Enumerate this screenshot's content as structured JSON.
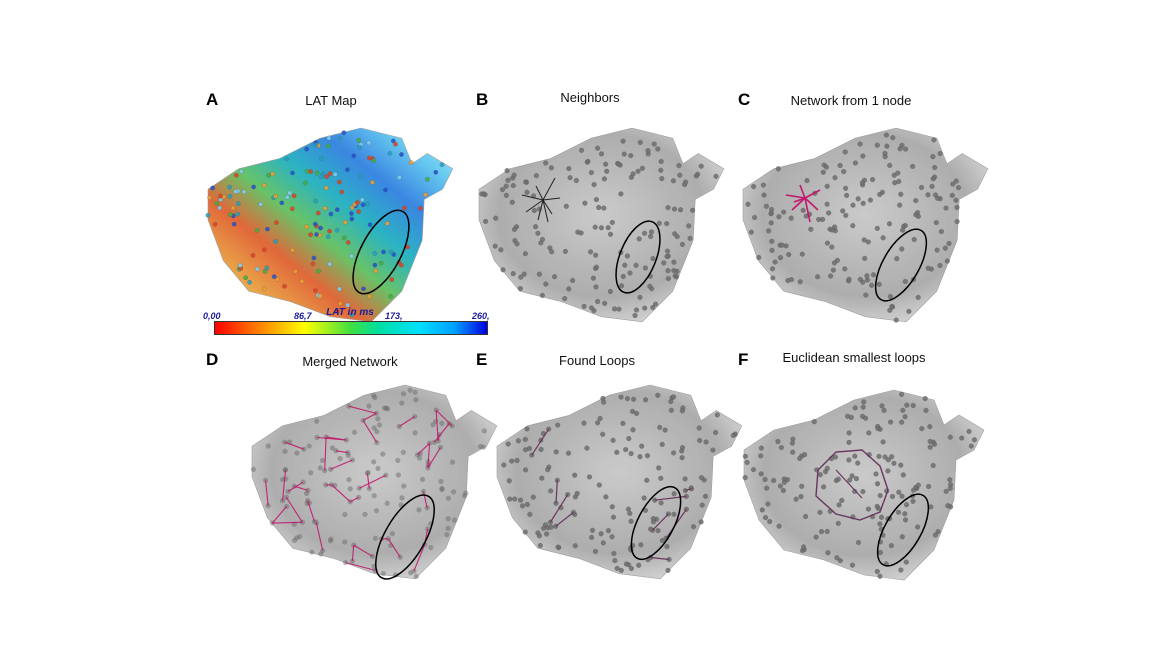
{
  "panels": [
    {
      "letter": "A",
      "title": "LAT Map"
    },
    {
      "letter": "B",
      "title": "Neighbors"
    },
    {
      "letter": "C",
      "title": "Network from 1 node"
    },
    {
      "letter": "D",
      "title": "Merged Network"
    },
    {
      "letter": "E",
      "title": "Found Loops"
    },
    {
      "letter": "F",
      "title": "Euclidean smallest loops"
    }
  ],
  "colorbar": {
    "title": "LAT in ms",
    "ticks": [
      "0,00",
      "86,7",
      "173,",
      "260,"
    ]
  },
  "colors": {
    "mesh_gray": "#b4b4b4",
    "node_gray": "#6e6e6e",
    "network_magenta": "#c2186e",
    "loop_purple": "#6a3560",
    "ellipse": "#000000"
  }
}
